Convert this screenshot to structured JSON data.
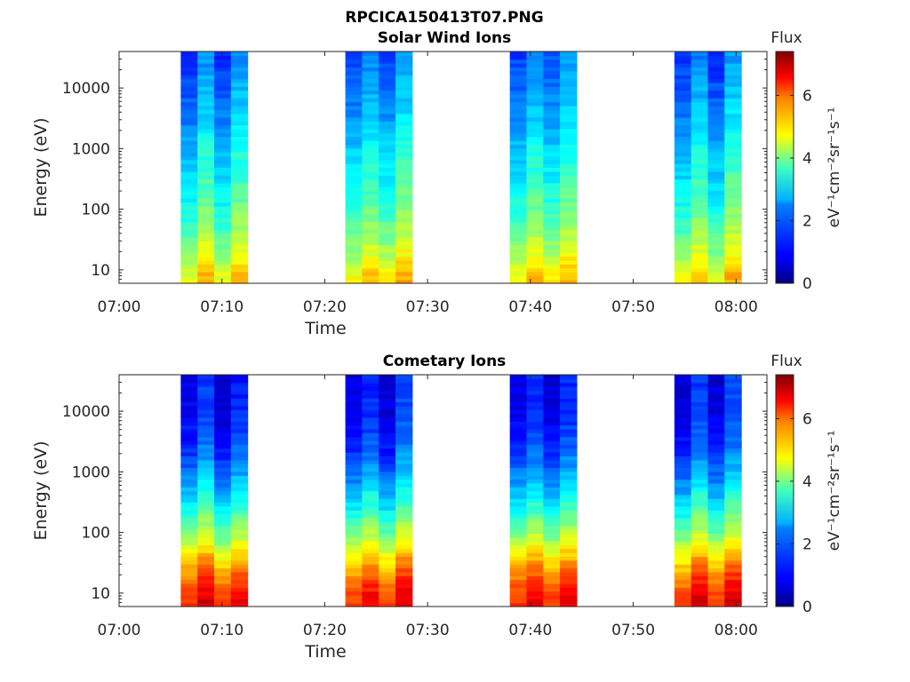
{
  "figure_title": "RPCICA150413T07.PNG",
  "chart_data": [
    {
      "type": "heatmap",
      "title": "Solar Wind Ions",
      "xlabel": "Time",
      "ylabel": "Energy (eV)",
      "yscale": "log",
      "ylim": [
        6,
        40000
      ],
      "xlim": [
        "07:00",
        "08:03"
      ],
      "x_ticks": [
        "07:00",
        "07:10",
        "07:20",
        "07:30",
        "07:40",
        "07:50",
        "08:00"
      ],
      "y_ticks": [
        "10",
        "100",
        "1000",
        "10000"
      ],
      "y_tick_values": [
        10,
        100,
        1000,
        10000
      ],
      "colorbar": {
        "title": "Flux",
        "label": "eV⁻¹cm⁻²sr⁻¹s⁻¹",
        "ticks": [
          "0",
          "2",
          "4",
          "6"
        ],
        "tick_values": [
          0,
          2,
          4,
          6
        ],
        "range": [
          0,
          7.4
        ],
        "colormap": "jet"
      },
      "blocks": [
        {
          "start": "07:06",
          "end": "07:12.5"
        },
        {
          "start": "07:22",
          "end": "07:28.5"
        },
        {
          "start": "07:38",
          "end": "07:44.5"
        },
        {
          "start": "07:54",
          "end": "08:00.5"
        }
      ],
      "flux_profile_energy": [
        8,
        15,
        25,
        50,
        100,
        300,
        1000,
        3000,
        10000,
        35000
      ],
      "flux_profile_value": [
        4.8,
        4.3,
        4.0,
        3.6,
        3.3,
        2.9,
        2.6,
        2.2,
        1.9,
        1.6
      ]
    },
    {
      "type": "heatmap",
      "title": "Cometary Ions",
      "xlabel": "Time",
      "ylabel": "Energy (eV)",
      "yscale": "log",
      "ylim": [
        6,
        40000
      ],
      "xlim": [
        "07:00",
        "08:03"
      ],
      "x_ticks": [
        "07:00",
        "07:10",
        "07:20",
        "07:30",
        "07:40",
        "07:50",
        "08:00"
      ],
      "y_ticks": [
        "10",
        "100",
        "1000",
        "10000"
      ],
      "y_tick_values": [
        10,
        100,
        1000,
        10000
      ],
      "colorbar": {
        "title": "Flux",
        "label": "eV⁻¹cm⁻²sr⁻¹s⁻¹",
        "ticks": [
          "0",
          "2",
          "4",
          "6"
        ],
        "tick_values": [
          0,
          2,
          4,
          6
        ],
        "range": [
          0,
          7.4
        ],
        "colormap": "jet"
      },
      "blocks": [
        {
          "start": "07:06",
          "end": "07:12.5"
        },
        {
          "start": "07:22",
          "end": "07:28.5"
        },
        {
          "start": "07:38",
          "end": "07:44.5"
        },
        {
          "start": "07:54",
          "end": "08:00.5"
        }
      ],
      "flux_profile_energy": [
        8,
        15,
        25,
        50,
        100,
        300,
        1000,
        3000,
        10000,
        35000
      ],
      "flux_profile_value": [
        6.3,
        5.9,
        5.4,
        4.6,
        3.8,
        2.8,
        1.9,
        1.3,
        1.0,
        0.9
      ]
    }
  ]
}
